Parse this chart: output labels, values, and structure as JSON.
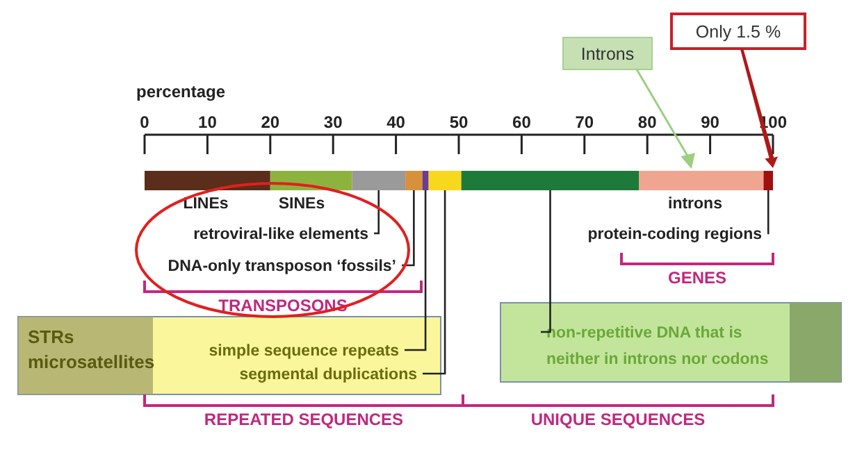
{
  "chart_data": {
    "type": "bar",
    "orientation": "horizontal",
    "stacked": true,
    "xlabel": "percentage",
    "categories": [
      null
    ],
    "xlim": [
      0,
      100
    ],
    "xticks": [
      0,
      10,
      20,
      30,
      40,
      50,
      60,
      70,
      80,
      90,
      100
    ],
    "grid": false,
    "legend": false,
    "series": [
      {
        "name": "LINEs",
        "color": "#5a2e1a",
        "values": [
          20
        ]
      },
      {
        "name": "SINEs",
        "color": "#8db33f",
        "values": [
          13
        ]
      },
      {
        "name": "retroviral-like elements",
        "color": "#9a9a9a",
        "values": [
          8.5
        ]
      },
      {
        "name": "DNA-only transposon ‘fossils’",
        "color": "#d7913a",
        "values": [
          2.7
        ]
      },
      {
        "name": "simple sequence repeats",
        "color": "#6a3d8f",
        "values": [
          1
        ]
      },
      {
        "name": "segmental duplications",
        "color": "#f7d81c",
        "values": [
          5.2
        ]
      },
      {
        "name": "non-repetitive DNA that is neither in introns nor codons",
        "color": "#1e7a3a",
        "values": [
          28.3
        ]
      },
      {
        "name": "introns",
        "color": "#f0a590",
        "values": [
          19.8
        ]
      },
      {
        "name": "protein-coding regions",
        "color": "#a01010",
        "values": [
          1.5
        ]
      }
    ],
    "annotations": [
      "Introns",
      "Only 1.5 %",
      "STRs microsatellites",
      "TRANSPOSONS",
      "GENES",
      "REPEATED SEQUENCES",
      "UNIQUE SEQUENCES"
    ]
  }
}
